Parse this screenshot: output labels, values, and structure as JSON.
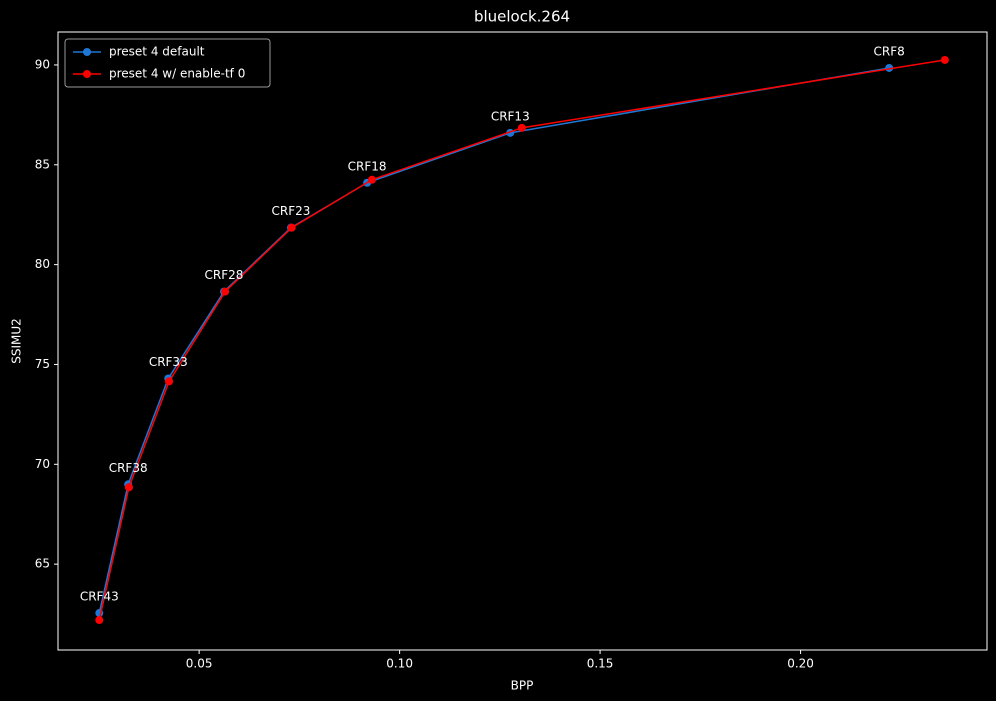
{
  "chart_data": {
    "type": "line",
    "title": "bluelock.264",
    "xlabel": "BPP",
    "ylabel": "SSIMU2",
    "series": [
      {
        "name": "preset 4 default",
        "color": "#1f77d4",
        "x": [
          0.0251,
          0.0323,
          0.0423,
          0.0562,
          0.0729,
          0.0919,
          0.1276,
          0.2221
        ],
        "values": [
          62.55,
          69.0,
          74.3,
          78.65,
          81.85,
          84.1,
          86.6,
          89.85
        ]
      },
      {
        "name": "preset 4 w/ enable-tf 0",
        "color": "#ff0000",
        "x": [
          0.0251,
          0.0325,
          0.0425,
          0.0565,
          0.0731,
          0.0931,
          0.1305,
          0.236
        ],
        "values": [
          62.2,
          68.85,
          74.15,
          78.65,
          81.85,
          84.25,
          86.85,
          90.25
        ]
      }
    ],
    "annotations": [
      "CRF43",
      "CRF38",
      "CRF33",
      "CRF28",
      "CRF23",
      "CRF18",
      "CRF13",
      "CRF8"
    ],
    "xlim": [
      0.0148,
      0.2465
    ],
    "ylim": [
      60.7,
      91.65
    ],
    "xticks": [
      0.05,
      {
        "value": 0.1,
        "label": "0.10"
      },
      0.15,
      {
        "value": 0.2,
        "label": "0.20"
      }
    ],
    "yticks": [
      65,
      70,
      75,
      80,
      85,
      90
    ],
    "legend": "upper-left"
  }
}
